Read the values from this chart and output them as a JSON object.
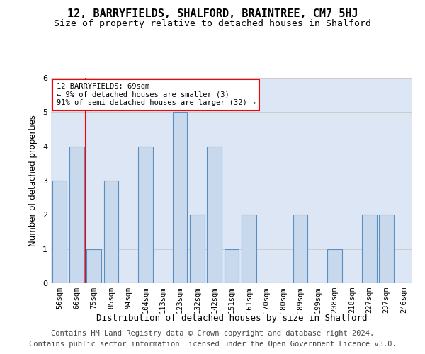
{
  "title": "12, BARRYFIELDS, SHALFORD, BRAINTREE, CM7 5HJ",
  "subtitle": "Size of property relative to detached houses in Shalford",
  "xlabel": "Distribution of detached houses by size in Shalford",
  "ylabel": "Number of detached properties",
  "categories": [
    "56sqm",
    "66sqm",
    "75sqm",
    "85sqm",
    "94sqm",
    "104sqm",
    "113sqm",
    "123sqm",
    "132sqm",
    "142sqm",
    "151sqm",
    "161sqm",
    "170sqm",
    "180sqm",
    "189sqm",
    "199sqm",
    "208sqm",
    "218sqm",
    "227sqm",
    "237sqm",
    "246sqm"
  ],
  "values": [
    3,
    4,
    1,
    3,
    0,
    4,
    0,
    5,
    2,
    4,
    1,
    2,
    0,
    0,
    2,
    0,
    1,
    0,
    2,
    2,
    0
  ],
  "bar_color": "#c9d9ed",
  "bar_edge_color": "#5a8fc0",
  "red_line_index": 1,
  "annotation_line1": "12 BARRYFIELDS: 69sqm",
  "annotation_line2": "← 9% of detached houses are smaller (3)",
  "annotation_line3": "91% of semi-detached houses are larger (32) →",
  "annotation_box_color": "white",
  "annotation_box_edge_color": "red",
  "ylim": [
    0,
    6
  ],
  "yticks": [
    0,
    1,
    2,
    3,
    4,
    5,
    6
  ],
  "grid_color": "#cccccc",
  "background_color": "#dce6f5",
  "footer_line1": "Contains HM Land Registry data © Crown copyright and database right 2024.",
  "footer_line2": "Contains public sector information licensed under the Open Government Licence v3.0.",
  "title_fontsize": 11,
  "subtitle_fontsize": 9.5,
  "axis_label_fontsize": 8.5,
  "tick_fontsize": 8,
  "footer_fontsize": 7.5
}
